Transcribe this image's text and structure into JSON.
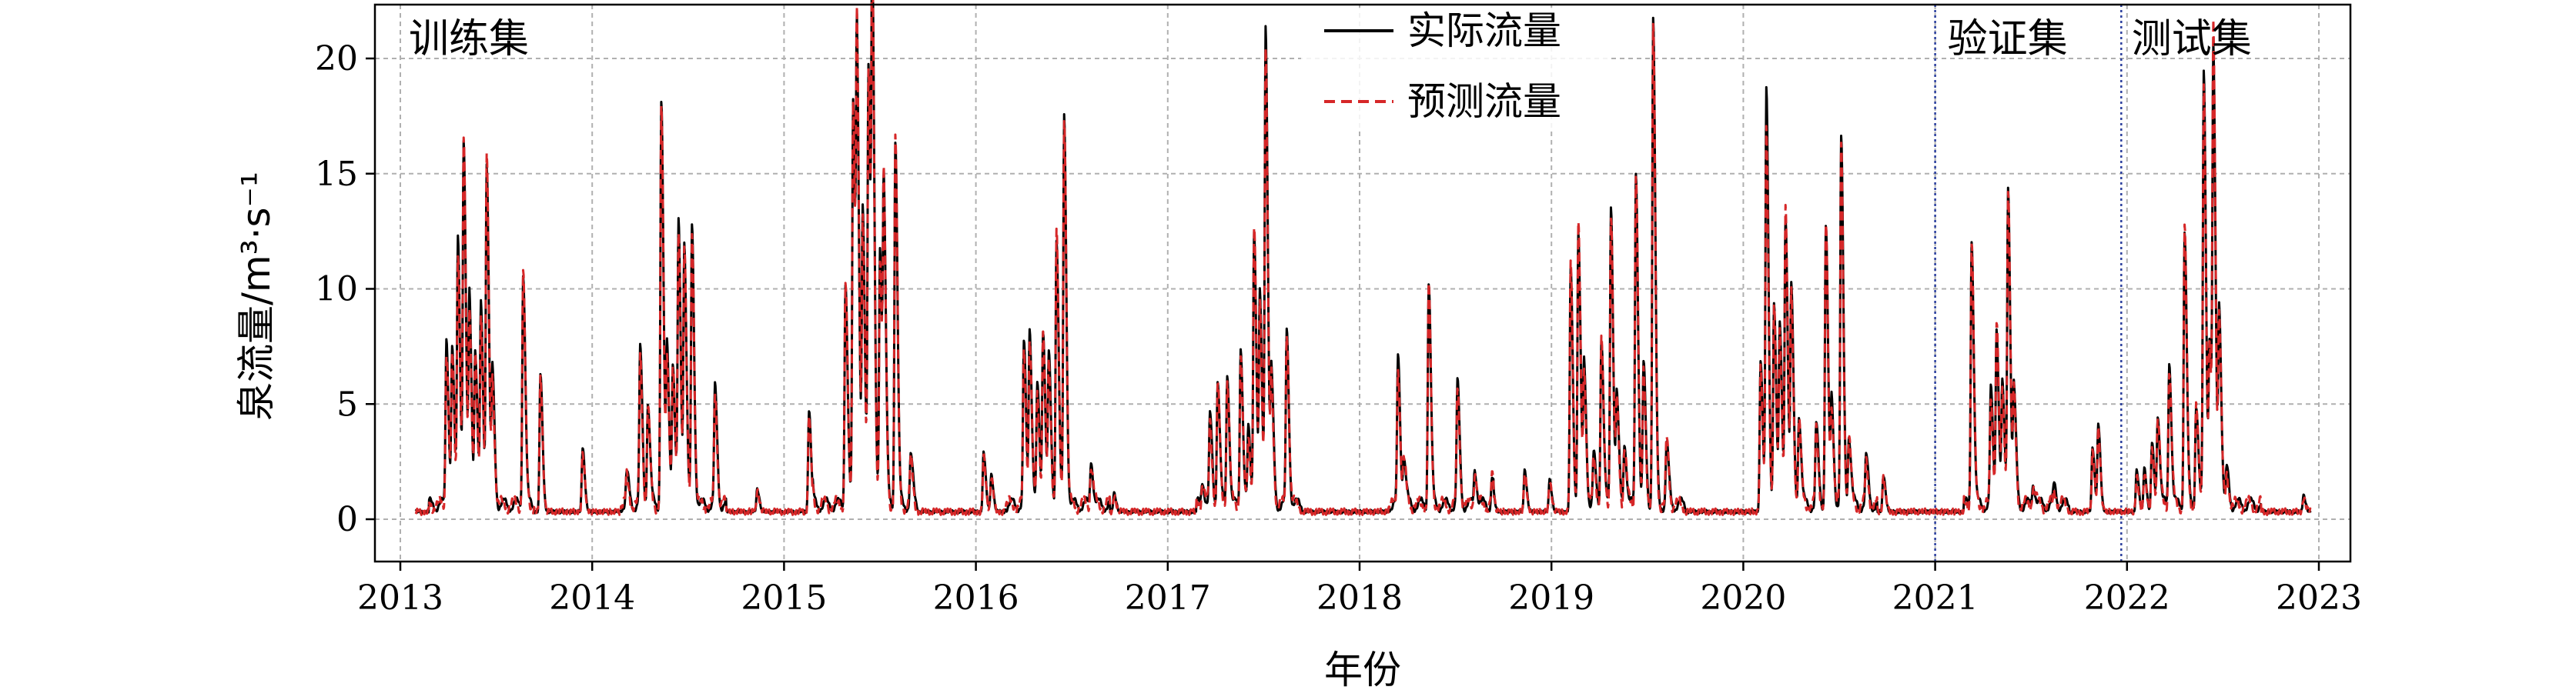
{
  "chart_data": {
    "type": "line",
    "title": "",
    "xlabel": "年份",
    "ylabel": "泉流量/m³·s⁻¹",
    "xlim": [
      2013.0,
      2023.15
    ],
    "ylim": [
      -1.5,
      22.5
    ],
    "x_ticks": [
      2013,
      2014,
      2015,
      2016,
      2017,
      2018,
      2019,
      2020,
      2021,
      2022,
      2023
    ],
    "x_tick_labels": [
      "2013",
      "2014",
      "2015",
      "2016",
      "2017",
      "2018",
      "2019",
      "2020",
      "2021",
      "2022",
      "2023"
    ],
    "y_ticks": [
      0,
      5,
      10,
      15,
      20
    ],
    "y_tick_labels": [
      "0",
      "5",
      "10",
      "15",
      "20"
    ],
    "grid": true,
    "legend_position": "top-center",
    "split_lines": [
      2021.0,
      2021.97
    ],
    "region_labels": [
      {
        "text": "训练集",
        "x": 2013.02
      },
      {
        "text": "验证集",
        "x": 2021.04
      },
      {
        "text": "测试集",
        "x": 2022.0
      }
    ],
    "baseline": 0.3,
    "series": [
      {
        "name": "实际流量",
        "color": "#000000",
        "style": "solid"
      },
      {
        "name": "预测流量",
        "color": "#d62728",
        "style": "dashed"
      }
    ],
    "peaks": [
      [
        2013.24,
        7.3,
        6.8
      ],
      [
        2013.27,
        6.6,
        6.3
      ],
      [
        2013.3,
        11.5,
        11.0
      ],
      [
        2013.33,
        15.5,
        15.5
      ],
      [
        2013.36,
        8.9,
        8.4
      ],
      [
        2013.39,
        6.6,
        6.2
      ],
      [
        2013.42,
        8.5,
        8.1
      ],
      [
        2013.45,
        14.8,
        14.9
      ],
      [
        2013.48,
        5.6,
        5.2
      ],
      [
        2013.64,
        10.2,
        10.1
      ],
      [
        2013.73,
        6.0,
        5.8
      ],
      [
        2013.95,
        2.8,
        2.6
      ],
      [
        2014.18,
        1.3,
        1.2
      ],
      [
        2014.25,
        6.7,
        6.4
      ],
      [
        2014.29,
        4.5,
        4.2
      ],
      [
        2014.36,
        17.6,
        17.2
      ],
      [
        2014.39,
        6.6,
        6.4
      ],
      [
        2014.42,
        6.1,
        5.8
      ],
      [
        2014.45,
        12.0,
        11.8
      ],
      [
        2014.48,
        11.3,
        11.0
      ],
      [
        2014.52,
        12.0,
        12.0
      ],
      [
        2014.64,
        5.0,
        4.8
      ],
      [
        2014.86,
        1.0,
        0.9
      ],
      [
        2015.13,
        4.4,
        4.2
      ],
      [
        2015.32,
        9.8,
        9.7
      ],
      [
        2015.36,
        17.5,
        17.6
      ],
      [
        2015.38,
        18.2,
        18.5
      ],
      [
        2015.41,
        12.3,
        12.1
      ],
      [
        2015.44,
        19.0,
        18.9
      ],
      [
        2015.46,
        21.5,
        21.0
      ],
      [
        2015.5,
        11.2,
        10.8
      ],
      [
        2015.52,
        12.6,
        12.4
      ],
      [
        2015.58,
        16.0,
        16.0
      ],
      [
        2015.66,
        2.1,
        1.9
      ],
      [
        2016.04,
        2.6,
        2.4
      ],
      [
        2016.08,
        1.6,
        1.5
      ],
      [
        2016.25,
        6.9,
        6.6
      ],
      [
        2016.28,
        7.7,
        7.2
      ],
      [
        2016.32,
        5.1,
        4.8
      ],
      [
        2016.35,
        7.7,
        7.4
      ],
      [
        2016.38,
        6.3,
        6.0
      ],
      [
        2016.42,
        11.7,
        11.8
      ],
      [
        2016.46,
        16.8,
        16.9
      ],
      [
        2016.6,
        2.0,
        1.8
      ],
      [
        2016.72,
        0.8,
        0.7
      ],
      [
        2017.18,
        1.1,
        1.0
      ],
      [
        2017.22,
        3.8,
        3.5
      ],
      [
        2017.26,
        5.5,
        5.2
      ],
      [
        2017.31,
        5.8,
        5.5
      ],
      [
        2017.38,
        7.0,
        6.5
      ],
      [
        2017.42,
        3.2,
        3.0
      ],
      [
        2017.45,
        12.0,
        12.0
      ],
      [
        2017.48,
        8.8,
        8.5
      ],
      [
        2017.51,
        20.8,
        19.7
      ],
      [
        2017.54,
        5.5,
        5.2
      ],
      [
        2017.62,
        7.5,
        7.6
      ],
      [
        2018.2,
        6.4,
        6.0
      ],
      [
        2018.23,
        2.1,
        1.9
      ],
      [
        2018.36,
        9.8,
        9.5
      ],
      [
        2018.51,
        5.2,
        5.0
      ],
      [
        2018.6,
        1.6,
        1.5
      ],
      [
        2018.69,
        1.2,
        1.1
      ],
      [
        2018.86,
        1.8,
        1.7
      ],
      [
        2018.99,
        1.4,
        1.3
      ],
      [
        2019.1,
        10.6,
        10.8
      ],
      [
        2019.14,
        12.1,
        12.5
      ],
      [
        2019.17,
        6.0,
        5.7
      ],
      [
        2019.22,
        2.1,
        2.0
      ],
      [
        2019.26,
        7.4,
        7.2
      ],
      [
        2019.31,
        13.0,
        12.8
      ],
      [
        2019.34,
        4.6,
        4.3
      ],
      [
        2019.38,
        2.8,
        2.6
      ],
      [
        2019.44,
        14.5,
        14.6
      ],
      [
        2019.48,
        6.0,
        5.8
      ],
      [
        2019.53,
        21.1,
        20.7
      ],
      [
        2019.6,
        2.6,
        2.8
      ],
      [
        2020.09,
        6.6,
        6.3
      ],
      [
        2020.12,
        18.3,
        16.5
      ],
      [
        2020.16,
        9.0,
        8.6
      ],
      [
        2020.19,
        7.5,
        7.2
      ],
      [
        2020.22,
        12.6,
        12.9
      ],
      [
        2020.25,
        9.2,
        8.8
      ],
      [
        2020.29,
        4.0,
        3.7
      ],
      [
        2020.38,
        3.4,
        3.2
      ],
      [
        2020.43,
        12.2,
        12.1
      ],
      [
        2020.46,
        4.4,
        4.2
      ],
      [
        2020.51,
        15.8,
        15.4
      ],
      [
        2020.55,
        3.1,
        2.9
      ],
      [
        2020.64,
        2.0,
        1.8
      ],
      [
        2020.73,
        1.6,
        1.5
      ],
      [
        2021.19,
        11.6,
        11.5
      ],
      [
        2021.29,
        4.9,
        4.6
      ],
      [
        2021.32,
        7.7,
        8.0
      ],
      [
        2021.35,
        5.0,
        4.8
      ],
      [
        2021.38,
        13.8,
        13.7
      ],
      [
        2021.41,
        4.9,
        4.7
      ],
      [
        2021.51,
        1.0,
        0.9
      ],
      [
        2021.62,
        0.8,
        0.7
      ],
      [
        2021.82,
        2.8,
        2.6
      ],
      [
        2021.85,
        3.8,
        3.5
      ],
      [
        2022.05,
        1.8,
        1.5
      ],
      [
        2022.09,
        1.9,
        1.7
      ],
      [
        2022.13,
        3.0,
        2.8
      ],
      [
        2022.16,
        4.0,
        3.8
      ],
      [
        2022.22,
        6.3,
        6.0
      ],
      [
        2022.3,
        12.0,
        11.9
      ],
      [
        2022.36,
        4.5,
        4.3
      ],
      [
        2022.4,
        18.7,
        18.4
      ],
      [
        2022.43,
        6.9,
        6.4
      ],
      [
        2022.45,
        18.5,
        19.7
      ],
      [
        2022.48,
        8.6,
        8.2
      ],
      [
        2022.52,
        1.5,
        1.3
      ],
      [
        2022.92,
        0.7,
        0.6
      ]
    ]
  }
}
